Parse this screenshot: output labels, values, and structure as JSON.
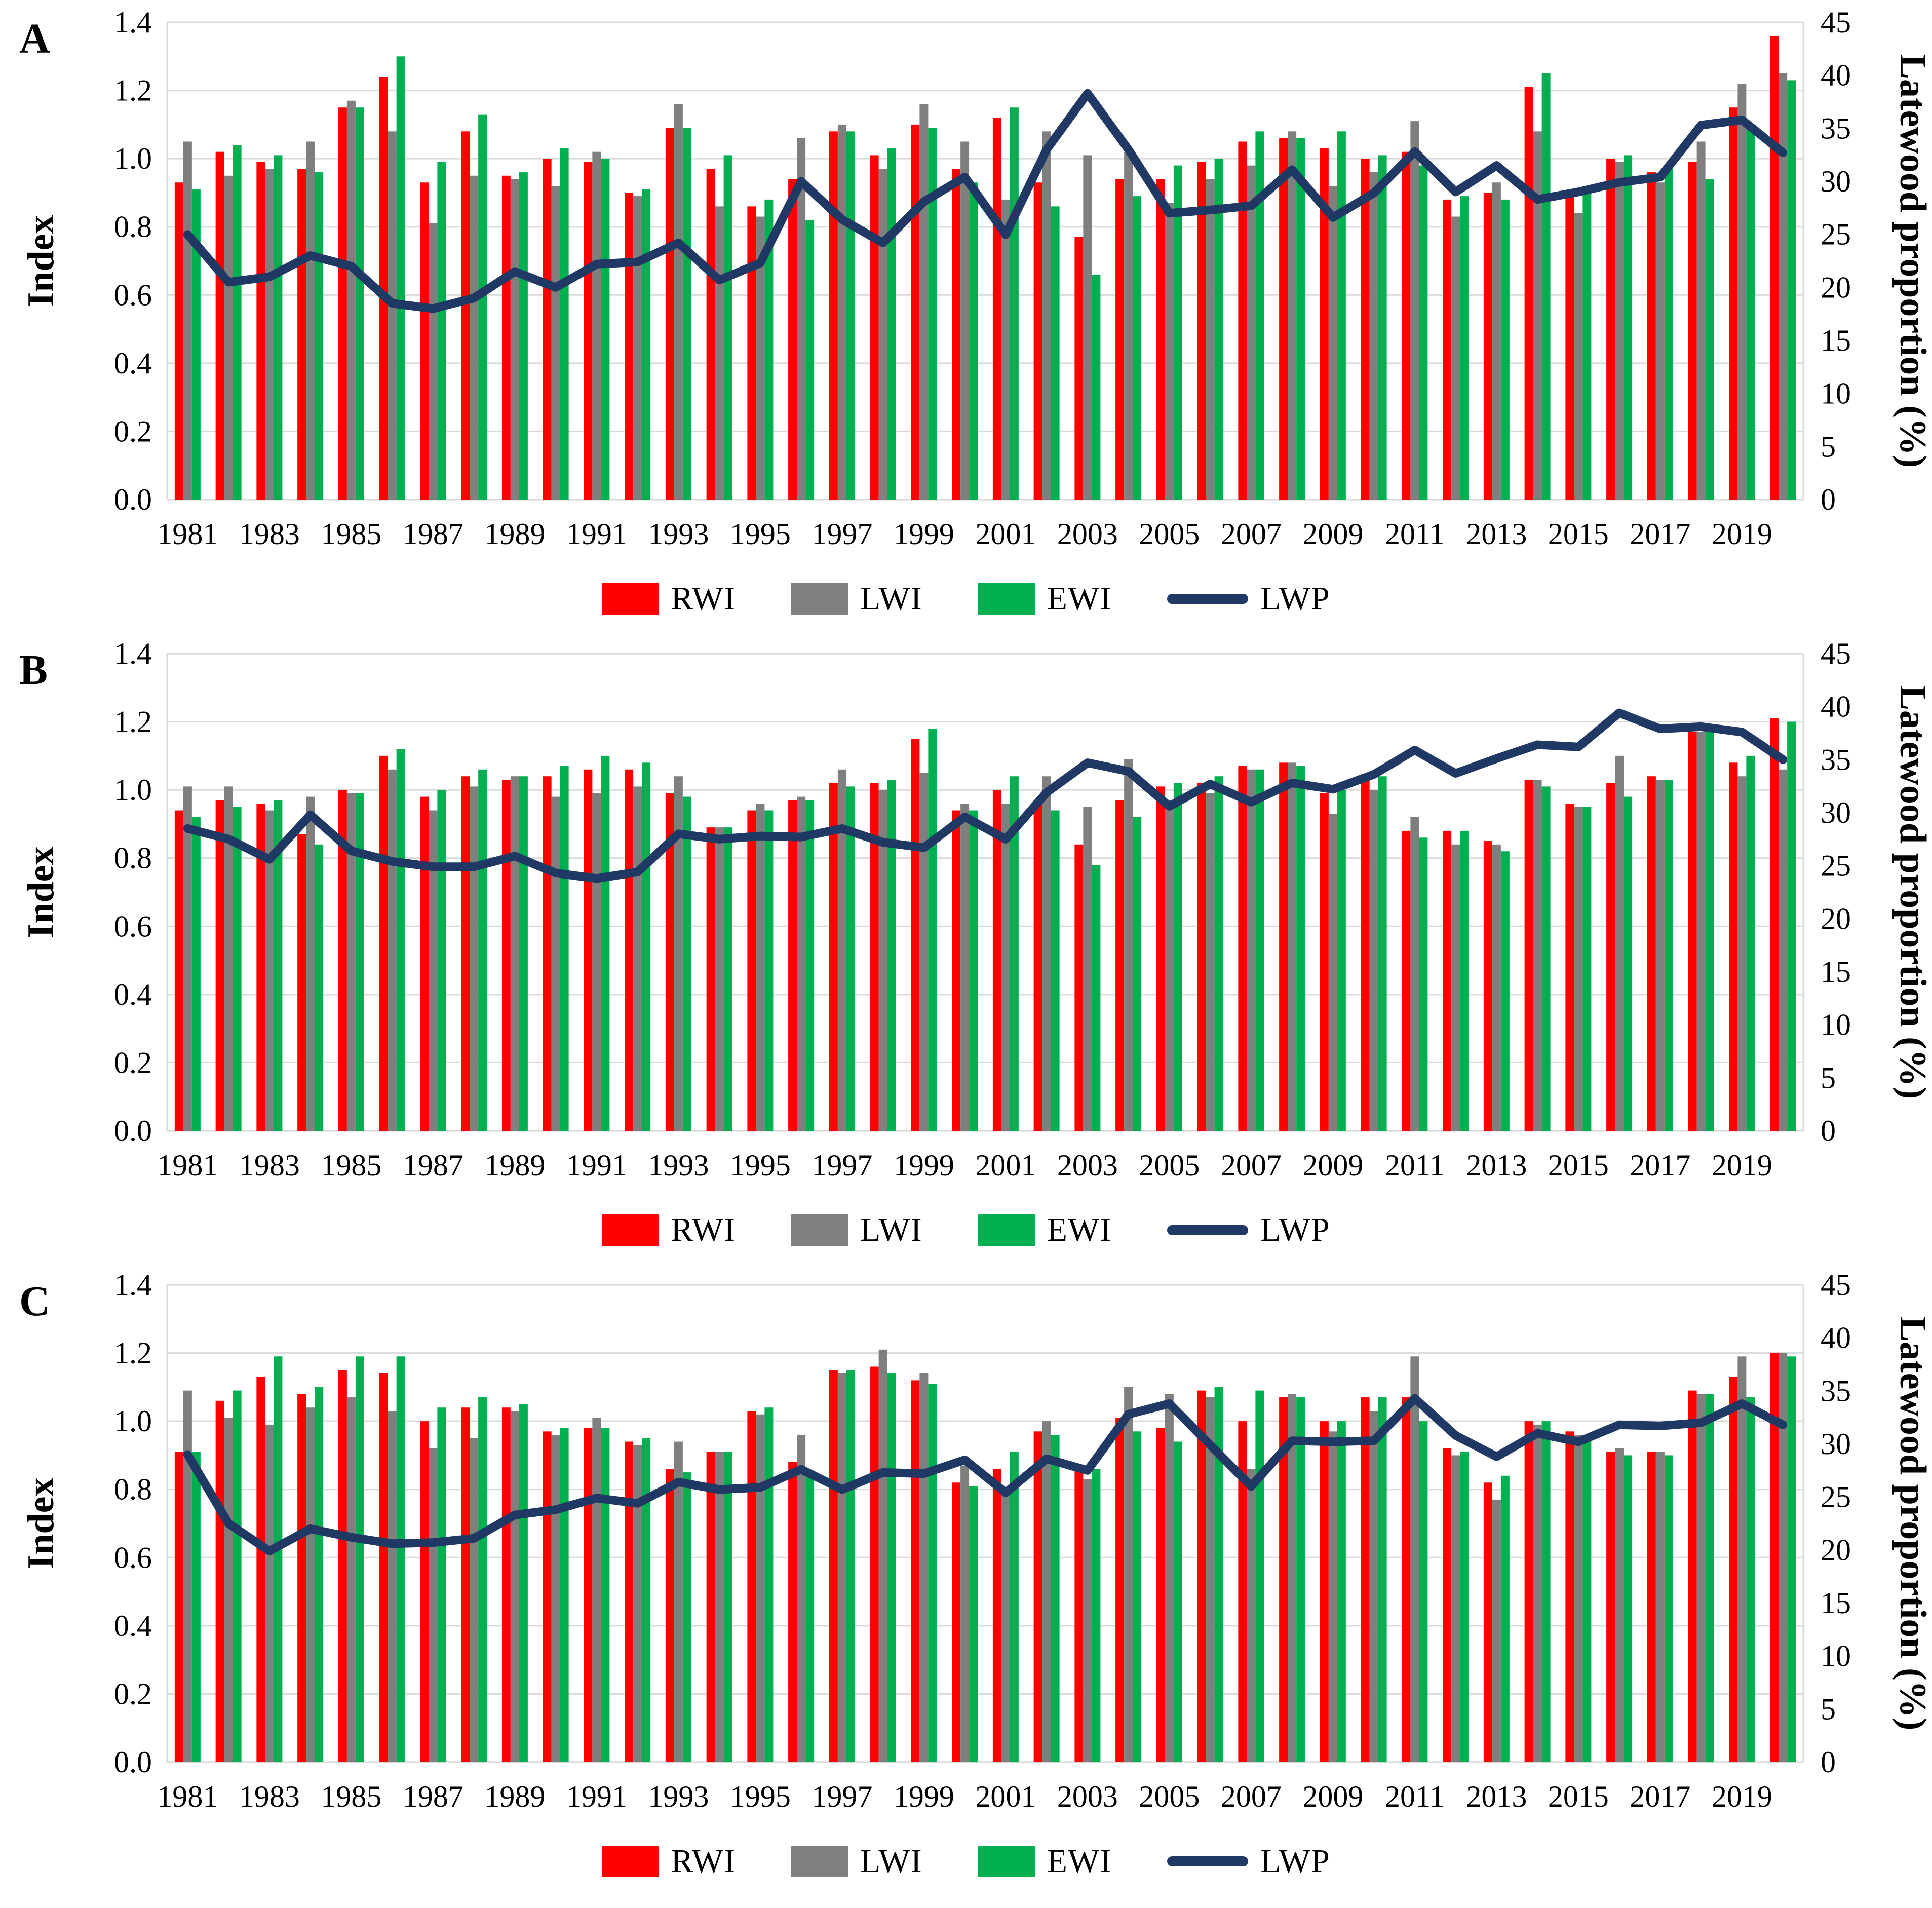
{
  "figure": {
    "kind": "three-panel dendrochronology chart"
  },
  "legend": {
    "items": [
      {
        "label": "RWI",
        "color": "#FF0000",
        "type": "bar"
      },
      {
        "label": "LWI",
        "color": "#7F7F7F",
        "type": "bar"
      },
      {
        "label": "EWI",
        "color": "#00B050",
        "type": "bar"
      },
      {
        "label": "LWP",
        "color": "#1F3864",
        "type": "line"
      }
    ]
  },
  "axes": {
    "left_title": "Index",
    "right_title": "Latewood proportion (%)",
    "left_ticks": [
      "0.0",
      "0.2",
      "0.4",
      "0.6",
      "0.8",
      "1.0",
      "1.2",
      "1.4"
    ],
    "right_ticks": [
      "0",
      "5",
      "10",
      "15",
      "20",
      "25",
      "30",
      "35",
      "40",
      "45"
    ],
    "x_tick_years": [
      "1981",
      "1983",
      "1985",
      "1987",
      "1989",
      "1991",
      "1993",
      "1995",
      "1997",
      "1999",
      "2001",
      "2003",
      "2005",
      "2007",
      "2009",
      "2011",
      "2013",
      "2015",
      "2017",
      "2019"
    ],
    "left_range": [
      0,
      1.4
    ],
    "right_range": [
      0,
      45
    ],
    "grid": "horizontal",
    "gridline_color": "#D9D9D9"
  },
  "chart_data": [
    {
      "panel": "A",
      "type": "bar+line",
      "categories": [
        1981,
        1982,
        1983,
        1984,
        1985,
        1986,
        1987,
        1988,
        1989,
        1990,
        1991,
        1992,
        1993,
        1994,
        1995,
        1996,
        1997,
        1998,
        1999,
        2000,
        2001,
        2002,
        2003,
        2004,
        2005,
        2006,
        2007,
        2008,
        2009,
        2010,
        2011,
        2012,
        2013,
        2014,
        2015,
        2016,
        2017,
        2018,
        2019,
        2020
      ],
      "series": [
        {
          "name": "RWI",
          "axis": "left",
          "color": "#FF0000",
          "values": [
            0.93,
            1.02,
            0.99,
            0.97,
            1.15,
            1.24,
            0.93,
            1.08,
            0.95,
            1.0,
            0.99,
            0.9,
            1.09,
            0.97,
            0.86,
            0.94,
            1.08,
            1.01,
            1.1,
            0.97,
            1.12,
            0.93,
            0.77,
            0.94,
            0.94,
            0.99,
            1.05,
            1.06,
            1.03,
            1.0,
            1.02,
            0.88,
            0.9,
            1.21,
            0.9,
            1.0,
            0.96,
            0.99,
            1.15,
            1.36
          ]
        },
        {
          "name": "LWI",
          "axis": "left",
          "color": "#7F7F7F",
          "values": [
            1.05,
            0.95,
            0.97,
            1.05,
            1.17,
            1.08,
            0.81,
            0.95,
            0.94,
            0.92,
            1.02,
            0.89,
            1.16,
            0.86,
            0.83,
            1.06,
            1.1,
            0.97,
            1.16,
            1.05,
            0.88,
            1.08,
            1.01,
            1.02,
            0.87,
            0.94,
            0.98,
            1.08,
            0.92,
            0.96,
            1.11,
            0.83,
            0.93,
            1.08,
            0.84,
            0.99,
            0.93,
            1.05,
            1.22,
            1.25
          ]
        },
        {
          "name": "EWI",
          "axis": "left",
          "color": "#00B050",
          "values": [
            0.91,
            1.04,
            1.01,
            0.96,
            1.15,
            1.3,
            0.99,
            1.13,
            0.96,
            1.03,
            1.0,
            0.91,
            1.09,
            1.01,
            0.88,
            0.82,
            1.08,
            1.03,
            1.09,
            0.93,
            1.15,
            0.86,
            0.66,
            0.89,
            0.98,
            1.0,
            1.08,
            1.06,
            1.08,
            1.01,
            0.98,
            0.89,
            0.88,
            1.25,
            0.92,
            1.01,
            0.97,
            0.94,
            1.1,
            1.23
          ]
        }
      ],
      "line": {
        "name": "LWP",
        "axis": "right",
        "color": "#1F3864",
        "values": [
          25.0,
          20.5,
          21.0,
          23.0,
          22.0,
          18.5,
          18.0,
          19.0,
          21.5,
          20.0,
          22.2,
          22.4,
          24.2,
          20.7,
          22.3,
          30.0,
          26.4,
          24.2,
          28.1,
          30.4,
          25.0,
          33.0,
          38.3,
          33.0,
          27.0,
          27.3,
          27.7,
          31.1,
          26.6,
          28.9,
          32.8,
          29.0,
          31.5,
          28.3,
          29.0,
          29.9,
          30.4,
          35.3,
          35.8,
          32.7
        ]
      },
      "ylim_left": [
        0,
        1.4
      ],
      "ylim_right": [
        0,
        45
      ]
    },
    {
      "panel": "B",
      "type": "bar+line",
      "categories": [
        1981,
        1982,
        1983,
        1984,
        1985,
        1986,
        1987,
        1988,
        1989,
        1990,
        1991,
        1992,
        1993,
        1994,
        1995,
        1996,
        1997,
        1998,
        1999,
        2000,
        2001,
        2002,
        2003,
        2004,
        2005,
        2006,
        2007,
        2008,
        2009,
        2010,
        2011,
        2012,
        2013,
        2014,
        2015,
        2016,
        2017,
        2018,
        2019,
        2020
      ],
      "series": [
        {
          "name": "RWI",
          "axis": "left",
          "color": "#FF0000",
          "values": [
            0.94,
            0.97,
            0.96,
            0.87,
            1.0,
            1.1,
            0.98,
            1.04,
            1.03,
            1.04,
            1.06,
            1.06,
            0.99,
            0.89,
            0.94,
            0.97,
            1.02,
            1.02,
            1.15,
            0.94,
            1.0,
            0.97,
            0.84,
            0.97,
            1.01,
            1.02,
            1.07,
            1.08,
            0.99,
            1.03,
            0.88,
            0.88,
            0.85,
            1.03,
            0.96,
            1.02,
            1.04,
            1.17,
            1.08,
            1.21
          ]
        },
        {
          "name": "LWI",
          "axis": "left",
          "color": "#7F7F7F",
          "values": [
            1.01,
            1.01,
            0.94,
            0.98,
            0.99,
            1.06,
            0.94,
            1.01,
            1.04,
            0.98,
            0.99,
            1.01,
            1.04,
            0.89,
            0.96,
            0.98,
            1.06,
            1.0,
            1.05,
            0.96,
            0.96,
            1.04,
            0.95,
            1.09,
            0.97,
            0.99,
            1.06,
            1.08,
            0.93,
            1.0,
            0.92,
            0.84,
            0.84,
            1.03,
            0.95,
            1.1,
            1.03,
            1.17,
            1.04,
            1.06
          ]
        },
        {
          "name": "EWI",
          "axis": "left",
          "color": "#00B050",
          "values": [
            0.92,
            0.95,
            0.97,
            0.84,
            0.99,
            1.12,
            1.0,
            1.06,
            1.04,
            1.07,
            1.1,
            1.08,
            0.98,
            0.89,
            0.94,
            0.97,
            1.01,
            1.03,
            1.18,
            0.94,
            1.04,
            0.94,
            0.78,
            0.92,
            1.02,
            1.04,
            1.06,
            1.07,
            1.0,
            1.04,
            0.86,
            0.88,
            0.82,
            1.01,
            0.95,
            0.98,
            1.03,
            1.18,
            1.1,
            1.2
          ]
        }
      ],
      "line": {
        "name": "LWP",
        "axis": "right",
        "color": "#1F3864",
        "values": [
          28.5,
          27.5,
          25.6,
          29.8,
          26.4,
          25.4,
          24.9,
          24.9,
          25.9,
          24.3,
          23.8,
          24.4,
          28.0,
          27.5,
          27.8,
          27.7,
          28.5,
          27.2,
          26.7,
          29.6,
          27.5,
          31.9,
          34.7,
          33.9,
          30.6,
          32.7,
          31.0,
          32.8,
          32.2,
          33.6,
          35.9,
          33.7,
          35.1,
          36.4,
          36.2,
          39.4,
          37.9,
          38.1,
          37.6,
          35.0
        ]
      },
      "ylim_left": [
        0,
        1.4
      ],
      "ylim_right": [
        0,
        45
      ]
    },
    {
      "panel": "C",
      "type": "bar+line",
      "categories": [
        1981,
        1982,
        1983,
        1984,
        1985,
        1986,
        1987,
        1988,
        1989,
        1990,
        1991,
        1992,
        1993,
        1994,
        1995,
        1996,
        1997,
        1998,
        1999,
        2000,
        2001,
        2002,
        2003,
        2004,
        2005,
        2006,
        2007,
        2008,
        2009,
        2010,
        2011,
        2012,
        2013,
        2014,
        2015,
        2016,
        2017,
        2018,
        2019,
        2020
      ],
      "series": [
        {
          "name": "RWI",
          "axis": "left",
          "color": "#FF0000",
          "values": [
            0.91,
            1.06,
            1.13,
            1.08,
            1.15,
            1.14,
            1.0,
            1.04,
            1.04,
            0.97,
            0.98,
            0.94,
            0.86,
            0.91,
            1.03,
            0.88,
            1.15,
            1.16,
            1.12,
            0.82,
            0.86,
            0.97,
            0.86,
            1.01,
            0.98,
            1.09,
            1.0,
            1.07,
            1.0,
            1.07,
            1.07,
            0.92,
            0.82,
            1.0,
            0.97,
            0.91,
            0.91,
            1.09,
            1.13,
            1.2
          ]
        },
        {
          "name": "LWI",
          "axis": "left",
          "color": "#7F7F7F",
          "values": [
            1.09,
            1.01,
            0.99,
            1.04,
            1.07,
            1.03,
            0.92,
            0.95,
            1.03,
            0.96,
            1.01,
            0.93,
            0.94,
            0.91,
            1.02,
            0.96,
            1.14,
            1.21,
            1.14,
            0.87,
            0.79,
            1.0,
            0.83,
            1.1,
            1.08,
            1.07,
            0.86,
            1.08,
            0.97,
            1.03,
            1.19,
            0.9,
            0.77,
            0.99,
            0.96,
            0.92,
            0.91,
            1.08,
            1.19,
            1.2
          ]
        },
        {
          "name": "EWI",
          "axis": "left",
          "color": "#00B050",
          "values": [
            0.91,
            1.09,
            1.19,
            1.1,
            1.19,
            1.19,
            1.04,
            1.07,
            1.05,
            0.98,
            0.98,
            0.95,
            0.85,
            0.91,
            1.04,
            0.85,
            1.15,
            1.14,
            1.11,
            0.81,
            0.91,
            0.96,
            0.86,
            0.97,
            0.94,
            1.1,
            1.09,
            1.07,
            1.0,
            1.07,
            1.0,
            0.91,
            0.84,
            1.0,
            0.96,
            0.9,
            0.9,
            1.08,
            1.07,
            1.19
          ]
        }
      ],
      "line": {
        "name": "LWP",
        "axis": "right",
        "color": "#1F3864",
        "values": [
          29.0,
          22.5,
          19.9,
          22.0,
          21.2,
          20.6,
          20.7,
          21.1,
          23.3,
          23.8,
          24.9,
          24.4,
          26.4,
          25.7,
          25.9,
          27.6,
          25.7,
          27.3,
          27.2,
          28.5,
          25.4,
          28.6,
          27.5,
          32.8,
          33.8,
          29.9,
          26.0,
          30.3,
          30.2,
          30.3,
          34.3,
          30.8,
          28.8,
          31.0,
          30.2,
          31.8,
          31.7,
          32.0,
          33.8,
          31.8
        ]
      },
      "ylim_left": [
        0,
        1.4
      ],
      "ylim_right": [
        0,
        45
      ]
    }
  ]
}
